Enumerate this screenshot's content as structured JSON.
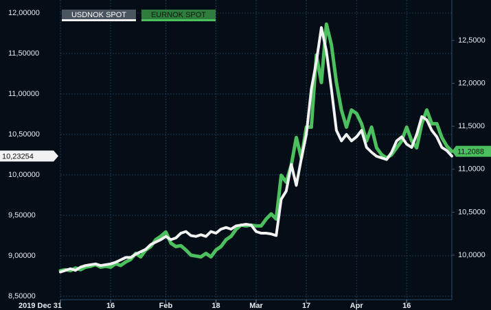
{
  "chart_data": {
    "type": "line",
    "categories": [
      "2019 Dec 31",
      null,
      null,
      null,
      null,
      null,
      null,
      null,
      null,
      null,
      "16",
      null,
      null,
      null,
      null,
      null,
      null,
      null,
      null,
      null,
      null,
      "Feb",
      null,
      null,
      null,
      null,
      null,
      null,
      null,
      null,
      null,
      "18",
      null,
      null,
      null,
      null,
      null,
      null,
      null,
      "Mar",
      null,
      null,
      null,
      null,
      null,
      null,
      null,
      null,
      null,
      "17",
      null,
      null,
      null,
      null,
      null,
      null,
      null,
      null,
      null,
      "Apr",
      null,
      null,
      null,
      null,
      null,
      null,
      null,
      null,
      null,
      "16",
      null,
      null,
      null,
      null,
      null,
      null,
      null,
      null,
      null
    ],
    "series": [
      {
        "name": "USDNOK SPOT",
        "color": "#f2f2f2",
        "axis": "y",
        "last_value_label": "10,23254",
        "values": [
          8.8,
          8.82,
          8.84,
          8.82,
          8.86,
          8.88,
          8.89,
          8.9,
          8.88,
          8.89,
          8.9,
          8.92,
          8.95,
          8.98,
          8.98,
          9.02,
          9.05,
          9.08,
          9.14,
          9.17,
          9.2,
          9.24,
          9.2,
          9.22,
          9.28,
          9.3,
          9.25,
          9.24,
          9.26,
          9.24,
          9.3,
          9.28,
          9.33,
          9.35,
          9.33,
          9.37,
          9.38,
          9.39,
          9.38,
          9.3,
          9.28,
          9.28,
          9.27,
          9.25,
          9.7,
          9.8,
          10.13,
          9.87,
          10.2,
          10.5,
          11.06,
          11.4,
          11.82,
          11.53,
          11.06,
          10.55,
          10.42,
          10.5,
          10.42,
          10.47,
          10.55,
          10.34,
          10.28,
          10.23,
          10.21,
          10.19,
          10.28,
          10.42,
          10.47,
          10.38,
          10.34,
          10.5,
          10.72,
          10.68,
          10.55,
          10.47,
          10.34,
          10.3,
          10.23254
        ]
      },
      {
        "name": "EURNOK SPOT",
        "color": "#4cbf5f",
        "axis": "y2",
        "last_value_label": "11,2088",
        "values": [
          9.82,
          9.83,
          9.82,
          9.85,
          9.83,
          9.86,
          9.87,
          9.89,
          9.86,
          9.87,
          9.86,
          9.9,
          9.88,
          9.92,
          9.95,
          10.02,
          9.98,
          10.06,
          10.1,
          10.18,
          10.22,
          10.27,
          10.14,
          10.1,
          10.11,
          10.06,
          10.0,
          9.99,
          9.98,
          10.02,
          9.98,
          10.06,
          10.1,
          10.18,
          10.22,
          10.3,
          10.35,
          10.34,
          10.35,
          10.34,
          10.34,
          10.42,
          10.48,
          10.42,
          10.93,
          10.85,
          11.05,
          11.37,
          11.13,
          11.49,
          11.49,
          12.33,
          12.01,
          12.69,
          12.45,
          12.01,
          11.69,
          11.49,
          11.69,
          11.65,
          11.53,
          11.33,
          11.49,
          11.25,
          11.17,
          11.13,
          11.17,
          11.25,
          11.33,
          11.49,
          11.33,
          11.25,
          11.53,
          11.69,
          11.53,
          11.53,
          11.37,
          11.27,
          11.2088
        ]
      }
    ],
    "ylim": [
      8.5,
      12.0
    ],
    "yticks": [
      {
        "value": 8.5,
        "label": "8,50000"
      },
      {
        "value": 9.0,
        "label": "9,00000"
      },
      {
        "value": 9.5,
        "label": "9,50000"
      },
      {
        "value": 10.0,
        "label": "10,00000"
      },
      {
        "value": 10.5,
        "label": "10,50000"
      },
      {
        "value": 11.0,
        "label": "11,00000"
      },
      {
        "value": 11.5,
        "label": "11,50000"
      },
      {
        "value": 12.0,
        "label": "12,00000"
      }
    ],
    "y2lim": [
      9.521,
      12.819
    ],
    "y2ticks": [
      {
        "value": 10.0,
        "label": "10,0000"
      },
      {
        "value": 10.5,
        "label": "10,5000"
      },
      {
        "value": 11.0,
        "label": "11,0000"
      },
      {
        "value": 11.5,
        "label": "11,5000"
      },
      {
        "value": 12.0,
        "label": "12,0000"
      },
      {
        "value": 12.5,
        "label": "12,5000"
      }
    ],
    "grid": true,
    "legend": "top-left"
  }
}
